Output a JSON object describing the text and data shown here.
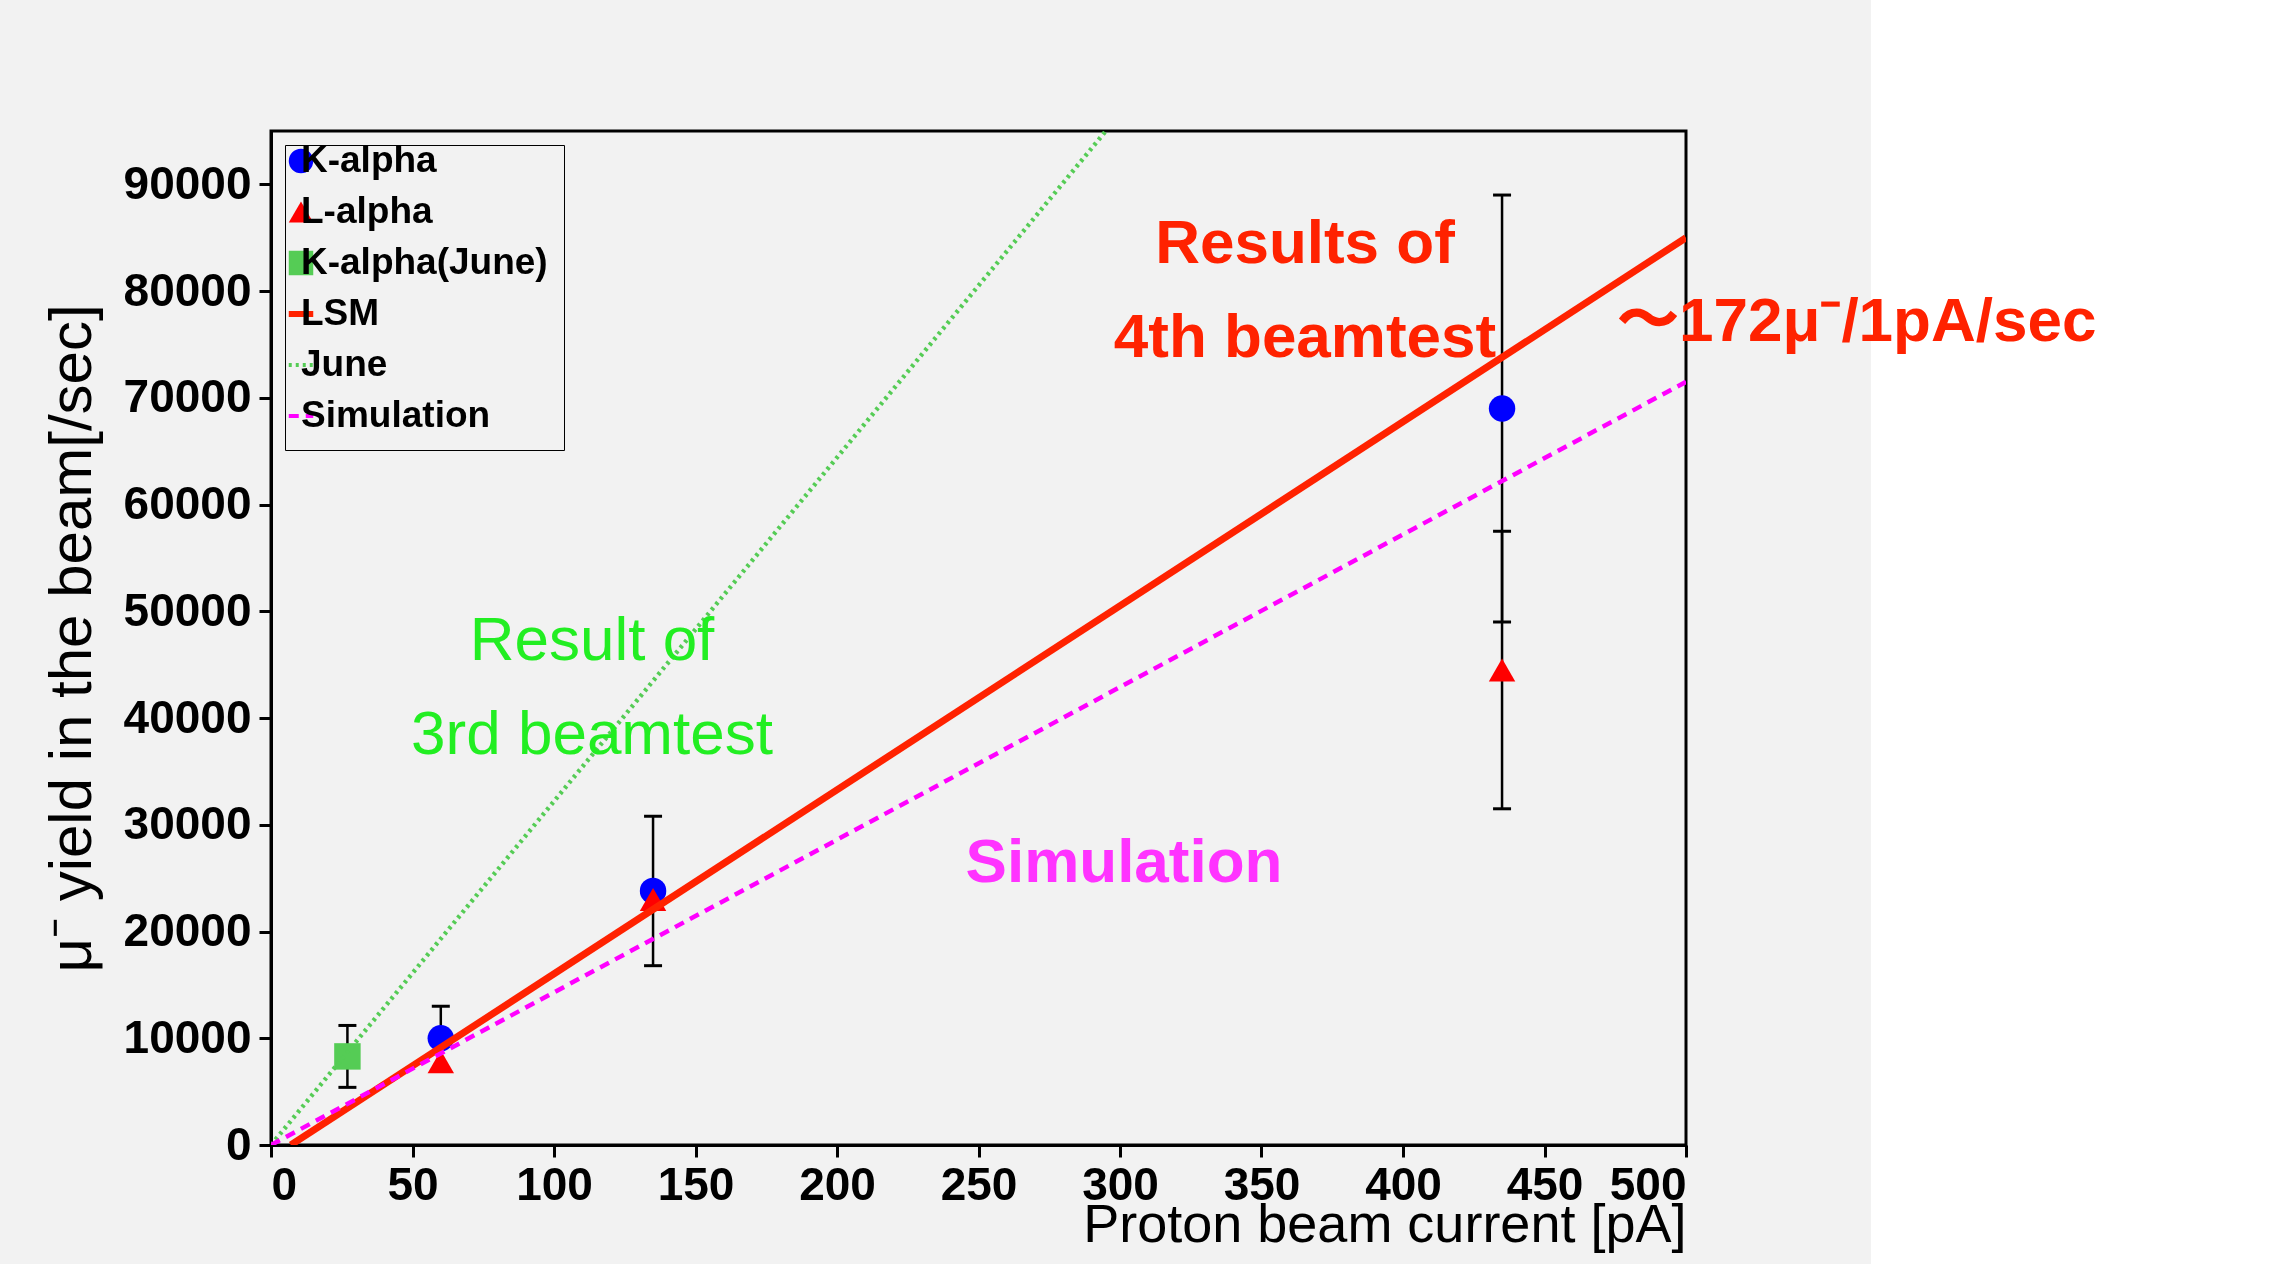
{
  "chart_data": {
    "type": "scatter",
    "xlabel": "Proton beam current [pA]",
    "ylabel": "μ⁻ yield in the beam[/sec]",
    "xlim": [
      0,
      500
    ],
    "ylim": [
      0,
      95000
    ],
    "xticks": [
      0,
      50,
      100,
      150,
      200,
      250,
      300,
      350,
      400,
      450,
      500
    ],
    "yticks": [
      0,
      10000,
      20000,
      30000,
      40000,
      50000,
      60000,
      70000,
      80000,
      90000
    ],
    "grid": false,
    "legend": "top left",
    "series": [
      {
        "name": "K-alpha",
        "marker": "circle",
        "color": "#0000ff",
        "x": [
          60,
          135,
          435
        ],
        "values": [
          10000,
          23800,
          69000
        ],
        "errors": [
          3000,
          7000,
          20000
        ]
      },
      {
        "name": "L-alpha",
        "marker": "triangle",
        "color": "#ff0000",
        "x": [
          60,
          135,
          435
        ],
        "values": [
          7800,
          23000,
          44500
        ],
        "errors": [
          null,
          null,
          13000
        ]
      },
      {
        "name": "K-alpha(June)",
        "marker": "square",
        "color": "#55cc55",
        "x": [
          27
        ],
        "values": [
          8300
        ],
        "errors": [
          2900
        ]
      },
      {
        "name": "LSM",
        "type": "line",
        "line_style": "solid",
        "color": "#ff2200",
        "x": [
          7,
          500
        ],
        "values": [
          0,
          85000
        ]
      },
      {
        "name": "June",
        "type": "line",
        "line_style": "dotted",
        "color": "#55cc55",
        "x": [
          0,
          295
        ],
        "values": [
          0,
          95000
        ]
      },
      {
        "name": "Simulation",
        "type": "line",
        "line_style": "dashed",
        "color": "#ff00ff",
        "x": [
          0,
          500
        ],
        "values": [
          0,
          71500
        ]
      }
    ],
    "annotations": [
      "Results of\n4th beamtest",
      "Result of\n3rd beamtest",
      "Simulation",
      "〜172μ⁻/1pA/sec"
    ]
  }
}
